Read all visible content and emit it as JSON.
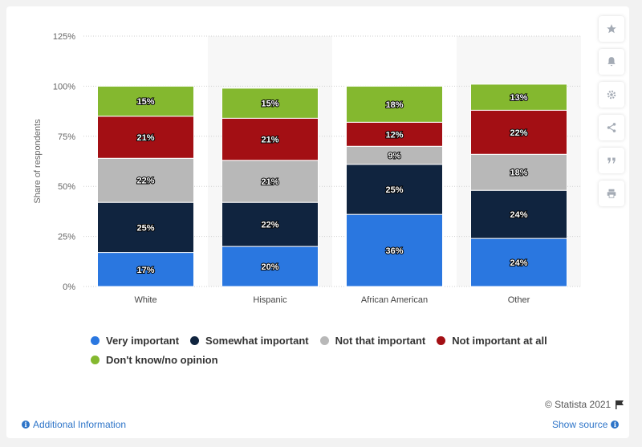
{
  "chart_data": {
    "type": "bar",
    "stacked": true,
    "ylabel": "Share of respondents",
    "xlabel": "",
    "ylim": [
      0,
      125
    ],
    "yticks": [
      "0%",
      "25%",
      "50%",
      "75%",
      "100%",
      "125%"
    ],
    "categories": [
      "White",
      "Hispanic",
      "African American",
      "Other"
    ],
    "series": [
      {
        "name": "Very important",
        "color": "#2a77e0",
        "values": [
          17,
          20,
          36,
          24
        ]
      },
      {
        "name": "Somewhat important",
        "color": "#10243f",
        "values": [
          25,
          22,
          25,
          24
        ]
      },
      {
        "name": "Not that important",
        "color": "#b8b8b8",
        "values": [
          22,
          21,
          9,
          18
        ]
      },
      {
        "name": "Not important at all",
        "color": "#a30f14",
        "values": [
          21,
          21,
          12,
          22
        ]
      },
      {
        "name": "Don't know/no opinion",
        "color": "#84b82f",
        "values": [
          15,
          15,
          18,
          13
        ]
      }
    ],
    "grid": true,
    "legend_position": "bottom"
  },
  "credit": "© Statista 2021",
  "footer": {
    "additional_info": "Additional Information",
    "show_source": "Show source"
  },
  "sidebar_icons": [
    "star-icon",
    "bell-icon",
    "gear-icon",
    "share-icon",
    "quote-icon",
    "print-icon"
  ]
}
